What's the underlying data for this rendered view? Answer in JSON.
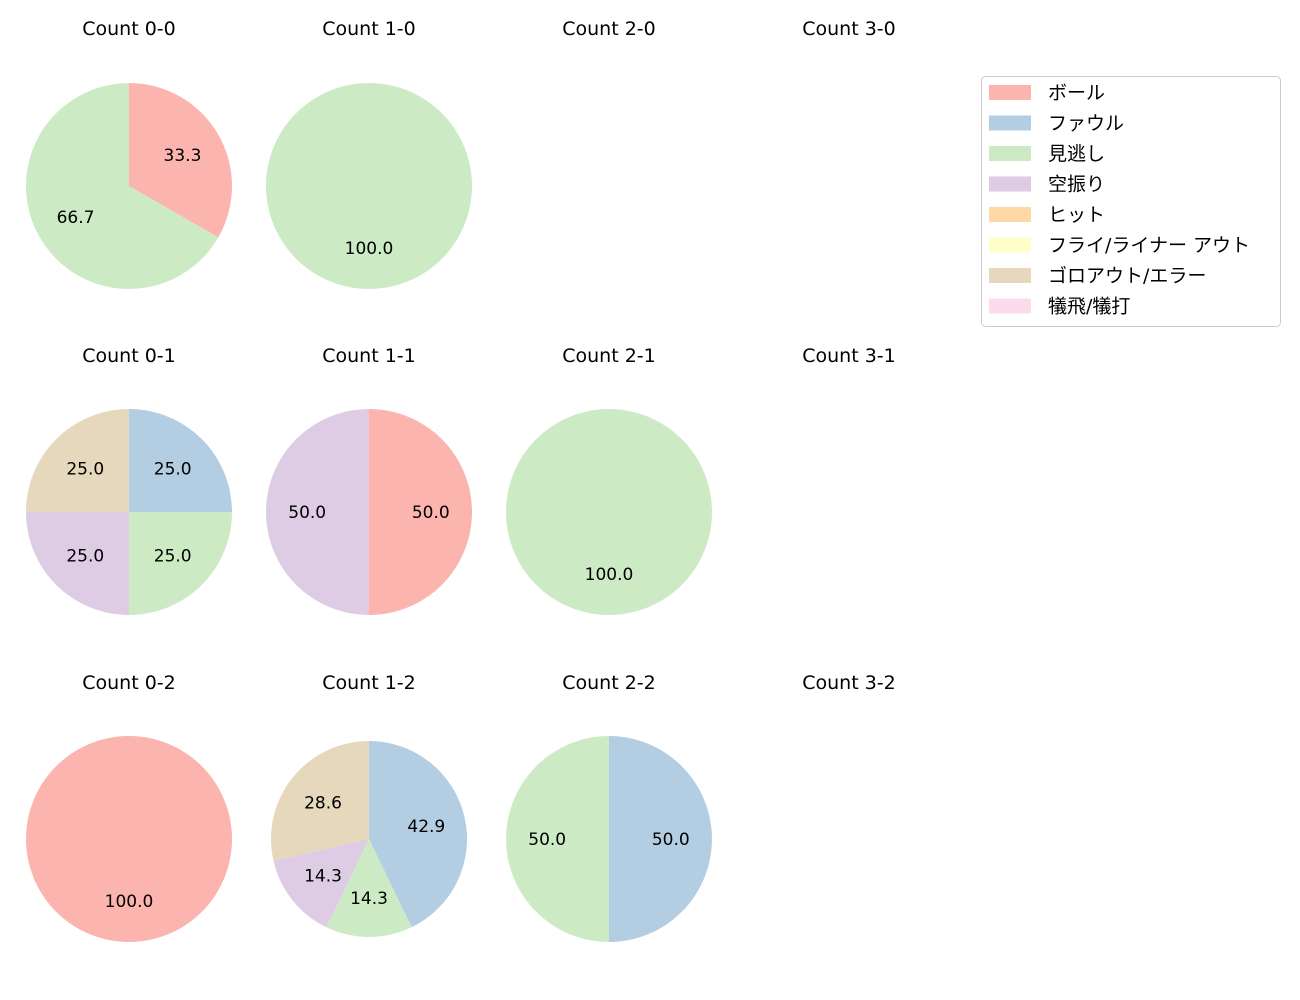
{
  "chart_data": {
    "type": "pie",
    "legend": {
      "placement": "top-right",
      "entries": [
        "ボール",
        "ファウル",
        "見逃し",
        "空振り",
        "ヒット",
        "フライ/ライナー アウト",
        "ゴロアウト/エラー",
        "犠飛/犠打"
      ],
      "colors": [
        "#fbb4ae",
        "#b3cde3",
        "#ccebc5",
        "#decbe4",
        "#fed9a6",
        "#ffffcc",
        "#e5d8bd",
        "#fddaec"
      ]
    },
    "start_angle": 90,
    "direction": "clockwise",
    "pies": [
      {
        "title": "Count 0-0",
        "values": [
          33.3,
          0,
          66.7,
          0,
          0,
          0,
          0,
          0
        ]
      },
      {
        "title": "Count 1-0",
        "values": [
          0,
          0,
          100.0,
          0,
          0,
          0,
          0,
          0
        ]
      },
      {
        "title": "Count 2-0",
        "values": []
      },
      {
        "title": "Count 3-0",
        "values": []
      },
      {
        "title": "Count 0-1",
        "values": [
          0,
          25.0,
          25.0,
          25.0,
          0,
          0,
          25.0,
          0
        ]
      },
      {
        "title": "Count 1-1",
        "values": [
          50.0,
          0,
          0,
          50.0,
          0,
          0,
          0,
          0
        ]
      },
      {
        "title": "Count 2-1",
        "values": [
          0,
          0,
          100.0,
          0,
          0,
          0,
          0,
          0
        ]
      },
      {
        "title": "Count 3-1",
        "values": []
      },
      {
        "title": "Count 0-2",
        "values": [
          100.0,
          0,
          0,
          0,
          0,
          0,
          0,
          0
        ]
      },
      {
        "title": "Count 1-2",
        "values": [
          0,
          42.9,
          14.3,
          14.3,
          0,
          0,
          28.6,
          0
        ]
      },
      {
        "title": "Count 2-2",
        "values": [
          0,
          50.0,
          50.0,
          0,
          0,
          0,
          0,
          0
        ]
      },
      {
        "title": "Count 3-2",
        "values": []
      }
    ]
  }
}
